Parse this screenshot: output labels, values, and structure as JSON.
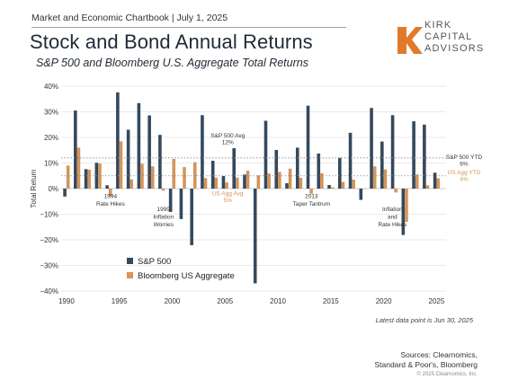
{
  "header": {
    "chartbook": "Market and Economic Chartbook | July 1, 2025",
    "title": "Stock and Bond Annual Returns",
    "subtitle": "S&P 500 and Bloomberg U.S. Aggregate Total Returns",
    "logo_lines": [
      "KIRK",
      "CAPITAL",
      "ADVISORS"
    ]
  },
  "footer": {
    "note": "Latest data point is Jun 30, 2025",
    "sources_line1": "Sources: Clearnomics,",
    "sources_line2": "Standard & Poor's, Bloomberg",
    "copyright": "© 2025 Clearnomics, Inc."
  },
  "colors": {
    "sp500": "#34495e",
    "agg": "#d4955a",
    "grid": "#e3e3e3",
    "dotted": "#888888",
    "agg_text": "#d4955a"
  },
  "chart_data": {
    "type": "bar",
    "ylabel": "Total Return",
    "ylim": [
      -40,
      40
    ],
    "yticks": [
      -40,
      -30,
      -20,
      -10,
      0,
      10,
      20,
      30,
      40
    ],
    "ytick_labels": [
      "−40%",
      "−30%",
      "−20%",
      "−10%",
      "0%",
      "10%",
      "20%",
      "30%",
      "40%"
    ],
    "xticks": [
      1990,
      1995,
      2000,
      2005,
      2010,
      2015,
      2020,
      2025
    ],
    "legend": {
      "placement": "bottom-left"
    },
    "x": [
      1990,
      1991,
      1992,
      1993,
      1994,
      1995,
      1996,
      1997,
      1998,
      1999,
      2000,
      2001,
      2002,
      2003,
      2004,
      2005,
      2006,
      2007,
      2008,
      2009,
      2010,
      2011,
      2012,
      2013,
      2014,
      2015,
      2016,
      2017,
      2018,
      2019,
      2020,
      2021,
      2022,
      2023,
      2024,
      2025
    ],
    "series": [
      {
        "name": "S&P 500",
        "values": [
          -3.1,
          30.5,
          7.6,
          10.1,
          1.3,
          37.6,
          23.0,
          33.4,
          28.6,
          21.0,
          -9.1,
          -11.9,
          -22.1,
          28.7,
          10.9,
          4.9,
          15.8,
          5.5,
          -37.0,
          26.5,
          15.1,
          2.1,
          16.0,
          32.4,
          13.7,
          1.4,
          12.0,
          21.8,
          -4.4,
          31.5,
          18.4,
          28.7,
          -18.1,
          26.3,
          25.0,
          6.2
        ]
      },
      {
        "name": "Bloomberg US Aggregate",
        "values": [
          9.0,
          16.0,
          7.4,
          9.8,
          -2.9,
          18.5,
          3.6,
          9.7,
          8.7,
          -0.8,
          11.6,
          8.4,
          10.3,
          4.1,
          4.3,
          2.4,
          4.3,
          7.0,
          5.2,
          5.9,
          6.5,
          7.8,
          4.2,
          -2.0,
          6.0,
          0.5,
          2.6,
          3.5,
          0.0,
          8.7,
          7.5,
          -1.5,
          -13.0,
          5.5,
          1.3,
          4.0
        ]
      }
    ],
    "reference_lines": [
      {
        "label": "S&P 500 Avg",
        "value_label": "12%",
        "value": 12,
        "style": "dotted"
      },
      {
        "label": "US Agg Avg",
        "value_label": "5%",
        "value": 5,
        "style": "dotted"
      }
    ],
    "ytd_labels": {
      "sp_label": "S&P 500 YTD",
      "sp_value": "6%",
      "agg_label": "US Agg YTD",
      "agg_value": "4%"
    },
    "annotations": [
      {
        "line1": "1994",
        "line2": "Rate Hikes"
      },
      {
        "line1": "1999",
        "line2": "Inflation",
        "line3": "Worries"
      },
      {
        "line1": "2013",
        "line2": "Taper Tantrum"
      },
      {
        "line1": "Inflation",
        "line2": "and",
        "line3": "Rate Hikes"
      }
    ]
  }
}
